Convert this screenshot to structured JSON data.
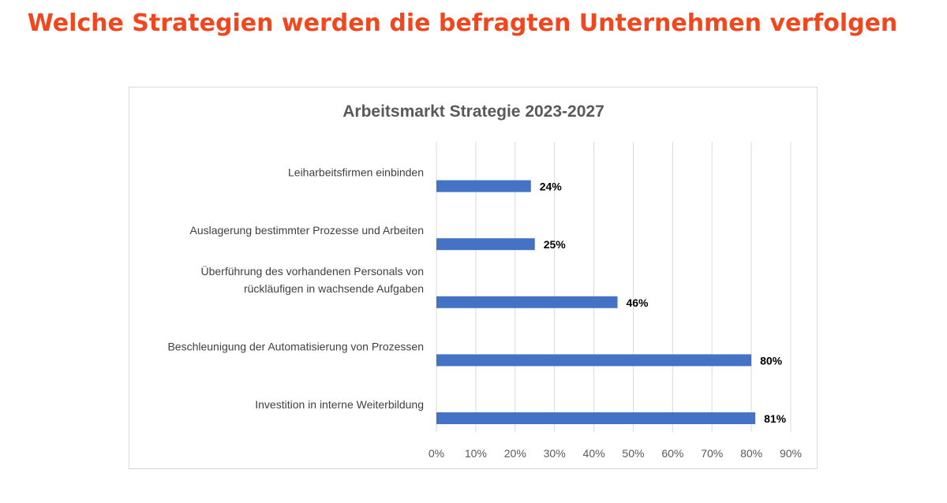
{
  "page": {
    "heading": "Welche Strategien werden die befragten Unternehmen verfolgen",
    "heading_color": "#f0471f"
  },
  "chart_data": {
    "type": "bar",
    "orientation": "horizontal",
    "title": "Arbeitsmarkt Strategie 2023-2027",
    "xlabel": "",
    "ylabel": "",
    "xlim": [
      0,
      90
    ],
    "x_ticks": [
      "0%",
      "10%",
      "20%",
      "30%",
      "40%",
      "50%",
      "60%",
      "70%",
      "80%",
      "90%"
    ],
    "grid": true,
    "legend": "none",
    "bar_color": "#4472c4",
    "categories": [
      [
        "Leiharbeitsfirmen einbinden"
      ],
      [
        "Auslagerung bestimmter Prozesse und Arbeiten"
      ],
      [
        "Überführung des vorhandenen Personals von",
        "rückläufigen in wachsende Aufgaben"
      ],
      [
        "Beschleunigung der Automatisierung von Prozessen"
      ],
      [
        "Investition in interne Weiterbildung"
      ]
    ],
    "values": [
      24,
      25,
      46,
      80,
      81
    ],
    "data_labels": [
      "24%",
      "25%",
      "46%",
      "80%",
      "81%"
    ]
  }
}
